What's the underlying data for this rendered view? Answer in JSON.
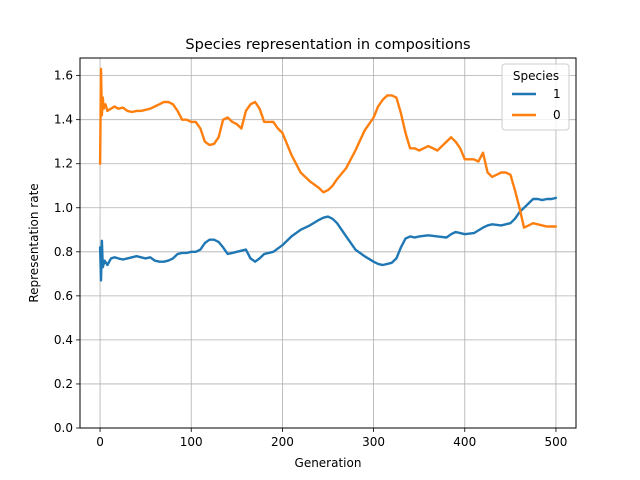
{
  "chart_data": {
    "type": "line",
    "title": "Species representation in compositions",
    "xlabel": "Generation",
    "ylabel": "Representation rate",
    "xlim": [
      -22,
      522
    ],
    "ylim": [
      0.0,
      1.68
    ],
    "xticks": [
      0,
      100,
      200,
      300,
      400,
      500
    ],
    "yticks": [
      0.0,
      0.2,
      0.4,
      0.6,
      0.8,
      1.0,
      1.2,
      1.4,
      1.6
    ],
    "grid": true,
    "legend": {
      "title": "Species",
      "position": "top-right"
    },
    "series": [
      {
        "name": "1",
        "color": "#1f77b4",
        "x": [
          0,
          1,
          2,
          3,
          5,
          8,
          12,
          16,
          20,
          25,
          30,
          35,
          40,
          45,
          50,
          55,
          60,
          65,
          70,
          75,
          80,
          85,
          90,
          95,
          100,
          105,
          110,
          115,
          120,
          125,
          130,
          135,
          140,
          145,
          150,
          155,
          160,
          165,
          170,
          175,
          180,
          185,
          190,
          200,
          210,
          220,
          230,
          240,
          245,
          250,
          255,
          260,
          270,
          280,
          290,
          300,
          305,
          310,
          315,
          320,
          325,
          330,
          335,
          340,
          345,
          350,
          360,
          370,
          380,
          385,
          390,
          395,
          400,
          410,
          420,
          425,
          430,
          440,
          450,
          455,
          460,
          465,
          470,
          475,
          480,
          485,
          490,
          495,
          500
        ],
        "values": [
          0.82,
          0.67,
          0.85,
          0.73,
          0.76,
          0.74,
          0.77,
          0.775,
          0.77,
          0.765,
          0.77,
          0.775,
          0.78,
          0.775,
          0.77,
          0.775,
          0.76,
          0.755,
          0.755,
          0.76,
          0.77,
          0.79,
          0.795,
          0.795,
          0.8,
          0.8,
          0.81,
          0.84,
          0.855,
          0.855,
          0.845,
          0.82,
          0.79,
          0.795,
          0.8,
          0.805,
          0.81,
          0.77,
          0.755,
          0.77,
          0.79,
          0.795,
          0.8,
          0.83,
          0.87,
          0.9,
          0.92,
          0.945,
          0.955,
          0.96,
          0.95,
          0.93,
          0.87,
          0.81,
          0.78,
          0.755,
          0.745,
          0.74,
          0.745,
          0.75,
          0.77,
          0.82,
          0.86,
          0.87,
          0.865,
          0.87,
          0.875,
          0.87,
          0.865,
          0.88,
          0.89,
          0.885,
          0.88,
          0.885,
          0.91,
          0.92,
          0.925,
          0.92,
          0.93,
          0.95,
          0.98,
          1.0,
          1.02,
          1.04,
          1.04,
          1.035,
          1.04,
          1.04,
          1.045
        ]
      },
      {
        "name": "0",
        "color": "#ff7f0e",
        "x": [
          0,
          1,
          2,
          3,
          4,
          6,
          8,
          12,
          16,
          20,
          25,
          30,
          35,
          40,
          45,
          50,
          55,
          60,
          65,
          70,
          75,
          80,
          85,
          90,
          95,
          100,
          105,
          110,
          115,
          120,
          125,
          130,
          135,
          140,
          145,
          150,
          155,
          160,
          165,
          170,
          175,
          180,
          185,
          190,
          195,
          200,
          210,
          220,
          230,
          240,
          245,
          250,
          255,
          260,
          270,
          280,
          290,
          300,
          305,
          310,
          315,
          320,
          325,
          330,
          335,
          340,
          345,
          350,
          360,
          370,
          380,
          385,
          390,
          395,
          400,
          410,
          415,
          420,
          425,
          430,
          435,
          440,
          445,
          450,
          455,
          460,
          465,
          470,
          475,
          480,
          485,
          490,
          495,
          500
        ],
        "values": [
          1.2,
          1.63,
          1.42,
          1.5,
          1.45,
          1.47,
          1.44,
          1.45,
          1.46,
          1.45,
          1.455,
          1.44,
          1.435,
          1.44,
          1.44,
          1.445,
          1.45,
          1.46,
          1.47,
          1.48,
          1.48,
          1.47,
          1.44,
          1.4,
          1.4,
          1.39,
          1.39,
          1.36,
          1.3,
          1.285,
          1.29,
          1.32,
          1.4,
          1.41,
          1.39,
          1.38,
          1.36,
          1.44,
          1.47,
          1.48,
          1.45,
          1.39,
          1.39,
          1.39,
          1.36,
          1.34,
          1.24,
          1.16,
          1.12,
          1.09,
          1.07,
          1.08,
          1.1,
          1.13,
          1.18,
          1.26,
          1.35,
          1.41,
          1.46,
          1.49,
          1.51,
          1.51,
          1.5,
          1.43,
          1.34,
          1.27,
          1.27,
          1.26,
          1.28,
          1.26,
          1.3,
          1.32,
          1.3,
          1.27,
          1.22,
          1.22,
          1.21,
          1.25,
          1.16,
          1.14,
          1.15,
          1.16,
          1.16,
          1.15,
          1.08,
          1.0,
          0.91,
          0.92,
          0.93,
          0.925,
          0.92,
          0.915,
          0.915,
          0.915
        ]
      }
    ]
  }
}
